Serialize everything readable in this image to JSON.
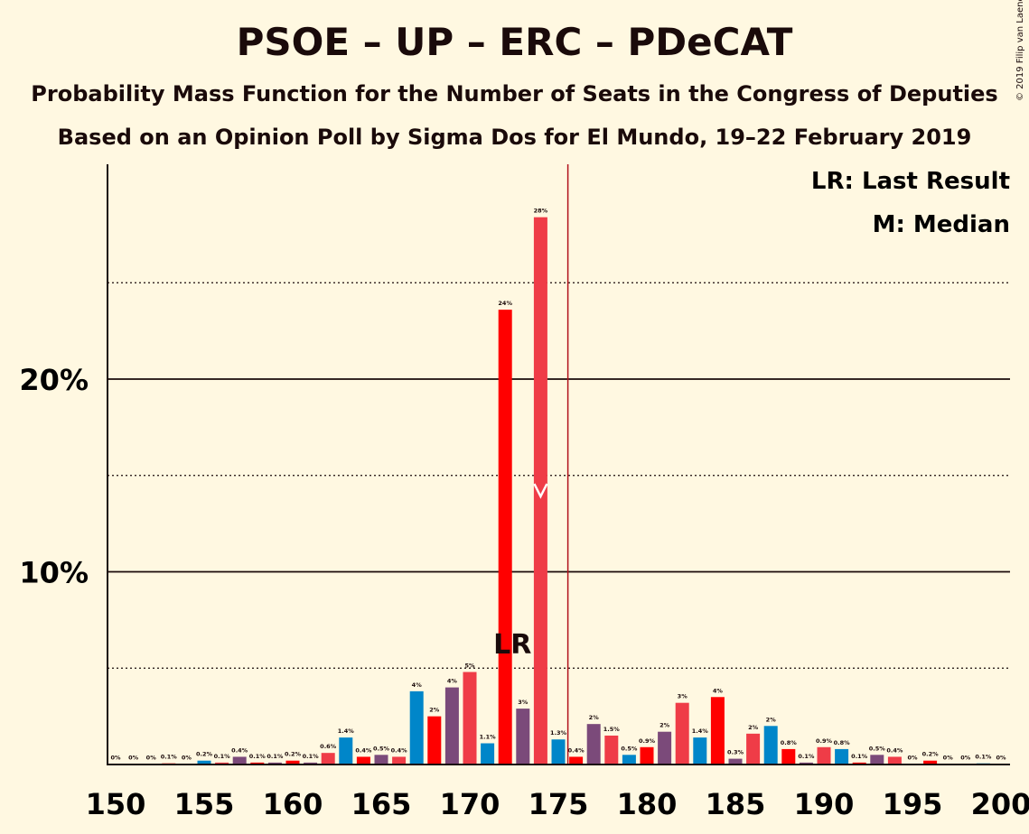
{
  "title": "PSOE – UP – ERC – PDeCAT",
  "subtitle_1": "Probability Mass Function for the Number of Seats in the Congress of Deputies",
  "subtitle_2": "Based on an Opinion Poll by Sigma Dos for El Mundo, 19–22 February 2019",
  "copyright": "© 2019 Filip van Laenen",
  "legend": {
    "last_result": "LR: Last Result",
    "median": "M: Median"
  },
  "markers": {
    "last_result_label": "LR",
    "last_result_seat": 172,
    "median_seat": 174,
    "majority_line_seat": 176
  },
  "colors": {
    "background": "#FFF8E1",
    "psoe": "#EF1C27",
    "up": "#7B4A7A",
    "erc": "#0086C9",
    "pdecat": "#EF3C47",
    "highlight_red": "#FF0000",
    "majority_line": "#B0111B",
    "text": "#1a0a0a"
  },
  "chart_data": {
    "type": "bar",
    "xlabel": "",
    "ylabel": "",
    "xlim": [
      150,
      200
    ],
    "ylim": [
      0,
      31
    ],
    "x_ticks": [
      150,
      155,
      160,
      165,
      170,
      175,
      180,
      185,
      190,
      195,
      200
    ],
    "y_ticks_labeled": [
      {
        "value": 10,
        "label": "10%"
      },
      {
        "value": 20,
        "label": "20%"
      }
    ],
    "y_gridlines_dotted": [
      5,
      15,
      25
    ],
    "grid": true,
    "legend_placement": "top-right",
    "bars": [
      {
        "seats": 150,
        "value": 0.02,
        "label": "0%",
        "color": "#0086C9"
      },
      {
        "seats": 151,
        "value": 0.02,
        "label": "0%",
        "color": "#EF3C47"
      },
      {
        "seats": 152,
        "value": 0.02,
        "label": "0%",
        "color": "#7B4A7A"
      },
      {
        "seats": 153,
        "value": 0.06,
        "label": "0.1%",
        "color": "#FF0000"
      },
      {
        "seats": 154,
        "value": 0.02,
        "label": "0%",
        "color": "#7B4A7A"
      },
      {
        "seats": 155,
        "value": 0.2,
        "label": "0.2%",
        "color": "#0086C9"
      },
      {
        "seats": 156,
        "value": 0.1,
        "label": "0.1%",
        "color": "#EF3C47"
      },
      {
        "seats": 157,
        "value": 0.4,
        "label": "0.4%",
        "color": "#7B4A7A"
      },
      {
        "seats": 158,
        "value": 0.1,
        "label": "0.1%",
        "color": "#FF0000"
      },
      {
        "seats": 159,
        "value": 0.1,
        "label": "0.1%",
        "color": "#7B4A7A"
      },
      {
        "seats": 160,
        "value": 0.2,
        "label": "0.2%",
        "color": "#FF0000"
      },
      {
        "seats": 161,
        "value": 0.1,
        "label": "0.1%",
        "color": "#7B4A7A"
      },
      {
        "seats": 162,
        "value": 0.6,
        "label": "0.6%",
        "color": "#EF3C47"
      },
      {
        "seats": 163,
        "value": 1.4,
        "label": "1.4%",
        "color": "#0086C9"
      },
      {
        "seats": 164,
        "value": 0.4,
        "label": "0.4%",
        "color": "#FF0000"
      },
      {
        "seats": 165,
        "value": 0.5,
        "label": "0.5%",
        "color": "#7B4A7A"
      },
      {
        "seats": 166,
        "value": 0.4,
        "label": "0.4%",
        "color": "#EF3C47"
      },
      {
        "seats": 167,
        "value": 3.8,
        "label": "4%",
        "color": "#0086C9"
      },
      {
        "seats": 168,
        "value": 2.5,
        "label": "2%",
        "color": "#FF0000"
      },
      {
        "seats": 169,
        "value": 4.0,
        "label": "4%",
        "color": "#7B4A7A"
      },
      {
        "seats": 170,
        "value": 4.8,
        "label": "5%",
        "color": "#EF3C47"
      },
      {
        "seats": 171,
        "value": 1.1,
        "label": "1.1%",
        "color": "#0086C9"
      },
      {
        "seats": 172,
        "value": 23.6,
        "label": "24%",
        "color": "#FF0000"
      },
      {
        "seats": 173,
        "value": 2.9,
        "label": "3%",
        "color": "#7B4A7A"
      },
      {
        "seats": 174,
        "value": 28.4,
        "label": "28%",
        "color": "#EF3C47"
      },
      {
        "seats": 175,
        "value": 1.3,
        "label": "1.3%",
        "color": "#0086C9"
      },
      {
        "seats": 176,
        "value": 0.4,
        "label": "0.4%",
        "color": "#FF0000"
      },
      {
        "seats": 177,
        "value": 2.1,
        "label": "2%",
        "color": "#7B4A7A"
      },
      {
        "seats": 178,
        "value": 1.5,
        "label": "1.5%",
        "color": "#EF3C47"
      },
      {
        "seats": 179,
        "value": 0.5,
        "label": "0.5%",
        "color": "#0086C9"
      },
      {
        "seats": 180,
        "value": 0.9,
        "label": "0.9%",
        "color": "#FF0000"
      },
      {
        "seats": 181,
        "value": 1.7,
        "label": "2%",
        "color": "#7B4A7A"
      },
      {
        "seats": 182,
        "value": 3.2,
        "label": "3%",
        "color": "#EF3C47"
      },
      {
        "seats": 183,
        "value": 1.4,
        "label": "1.4%",
        "color": "#0086C9"
      },
      {
        "seats": 184,
        "value": 3.5,
        "label": "4%",
        "color": "#FF0000"
      },
      {
        "seats": 185,
        "value": 0.3,
        "label": "0.3%",
        "color": "#7B4A7A"
      },
      {
        "seats": 186,
        "value": 1.6,
        "label": "2%",
        "color": "#EF3C47"
      },
      {
        "seats": 187,
        "value": 2.0,
        "label": "2%",
        "color": "#0086C9"
      },
      {
        "seats": 188,
        "value": 0.8,
        "label": "0.8%",
        "color": "#FF0000"
      },
      {
        "seats": 189,
        "value": 0.1,
        "label": "0.1%",
        "color": "#7B4A7A"
      },
      {
        "seats": 190,
        "value": 0.9,
        "label": "0.9%",
        "color": "#EF3C47"
      },
      {
        "seats": 191,
        "value": 0.8,
        "label": "0.8%",
        "color": "#0086C9"
      },
      {
        "seats": 192,
        "value": 0.1,
        "label": "0.1%",
        "color": "#FF0000"
      },
      {
        "seats": 193,
        "value": 0.5,
        "label": "0.5%",
        "color": "#7B4A7A"
      },
      {
        "seats": 194,
        "value": 0.4,
        "label": "0.4%",
        "color": "#EF3C47"
      },
      {
        "seats": 195,
        "value": 0.02,
        "label": "0%",
        "color": "#0086C9"
      },
      {
        "seats": 196,
        "value": 0.2,
        "label": "0.2%",
        "color": "#FF0000"
      },
      {
        "seats": 197,
        "value": 0.02,
        "label": "0%",
        "color": "#7B4A7A"
      },
      {
        "seats": 198,
        "value": 0.02,
        "label": "0%",
        "color": "#EF3C47"
      },
      {
        "seats": 199,
        "value": 0.06,
        "label": "0.1%",
        "color": "#0086C9"
      },
      {
        "seats": 200,
        "value": 0.02,
        "label": "0%",
        "color": "#FF0000"
      }
    ]
  }
}
